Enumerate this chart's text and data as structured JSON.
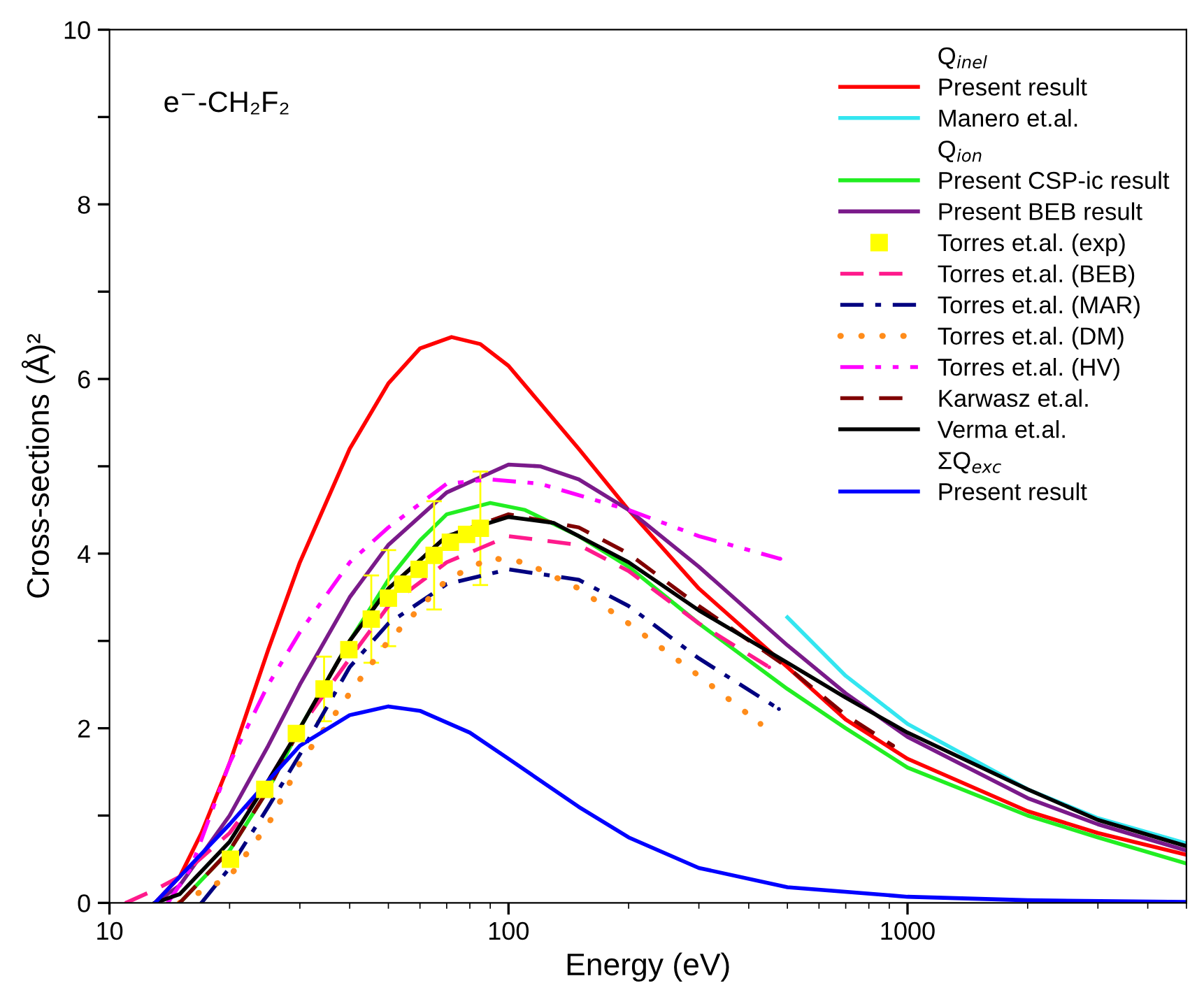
{
  "chart_data": {
    "type": "line",
    "xlabel": "Energy (eV)",
    "ylabel": "Cross-sections (Å)²",
    "annotations": [
      {
        "text": "e$^{−}$-CH₂F₂"
      }
    ],
    "log": "x",
    "xlim": [
      10,
      5000
    ],
    "xticks": [
      10,
      100,
      1000
    ],
    "ylim": [
      0,
      10
    ],
    "yticks": [
      0,
      {
        "value": 1,
        "label": null
      },
      2,
      {
        "value": 3,
        "label": null
      },
      4,
      {
        "value": 5,
        "label": null
      },
      6,
      {
        "value": 7,
        "label": null
      },
      8,
      {
        "value": 9,
        "label": null
      },
      10
    ],
    "grid": false,
    "legend": "top right",
    "series": [
      {
        "type": "other",
        "name": "Q$_{inel}$"
      },
      {
        "name": "Present result",
        "color": "#ff0000",
        "line_style": "solid",
        "x": [
          13,
          15,
          17,
          20,
          25,
          30,
          40,
          50,
          60,
          72,
          85,
          100,
          150,
          200,
          300,
          500,
          700,
          1000,
          2000,
          3000,
          5000
        ],
        "values": [
          0,
          0.3,
          0.8,
          1.6,
          2.9,
          3.9,
          5.2,
          5.95,
          6.35,
          6.48,
          6.4,
          6.15,
          5.2,
          4.5,
          3.6,
          2.7,
          2.1,
          1.65,
          1.05,
          0.8,
          0.55
        ]
      },
      {
        "name": "Manero et.al.",
        "color": "#33e6f0",
        "line_style": "solid",
        "x": [
          500,
          700,
          1000,
          2000,
          3000,
          5000
        ],
        "values": [
          3.27,
          2.6,
          2.05,
          1.3,
          0.97,
          0.68
        ]
      },
      {
        "type": "other",
        "name": "Q$_{ion}$"
      },
      {
        "name": "Present CSP-ic result",
        "color": "#22ee22",
        "line_style": "solid",
        "x": [
          15,
          20,
          25,
          30,
          40,
          50,
          60,
          70,
          90,
          110,
          150,
          200,
          300,
          500,
          700,
          1000,
          2000,
          3000,
          5000
        ],
        "values": [
          0,
          0.6,
          1.3,
          2.0,
          3.0,
          3.7,
          4.15,
          4.45,
          4.58,
          4.5,
          4.2,
          3.85,
          3.2,
          2.45,
          2.0,
          1.55,
          1.0,
          0.75,
          0.45
        ]
      },
      {
        "name": "Present BEB result",
        "color": "#7a1a8a",
        "line_style": "solid",
        "x": [
          13,
          15,
          20,
          25,
          30,
          40,
          50,
          70,
          100,
          120,
          150,
          200,
          300,
          500,
          700,
          1000,
          2000,
          3000,
          5000
        ],
        "values": [
          0,
          0.2,
          1.0,
          1.8,
          2.5,
          3.5,
          4.1,
          4.7,
          5.02,
          5.0,
          4.85,
          4.5,
          3.85,
          2.95,
          2.4,
          1.9,
          1.2,
          0.9,
          0.6
        ]
      },
      {
        "type": "scatter",
        "name": "Torres et.al. (exp)",
        "color": "#ffff00",
        "marker": "square",
        "x": [
          20.1,
          24.5,
          29.4,
          34.5,
          39.8,
          45.3,
          50,
          54.3,
          59.7,
          65.1,
          71.5,
          78.5,
          85
        ],
        "values": [
          0.5,
          1.3,
          1.94,
          2.45,
          2.9,
          3.25,
          3.49,
          3.65,
          3.82,
          3.98,
          4.13,
          4.22,
          4.29
        ],
        "errors": [
          null,
          null,
          null,
          0.37,
          null,
          0.5,
          0.55,
          null,
          null,
          0.62,
          null,
          null,
          0.65
        ]
      },
      {
        "name": "Torres et.al. (BEB)",
        "color": "#ff1a8c",
        "line_style": "dashed",
        "x": [
          11,
          13,
          15,
          20,
          25,
          30,
          40,
          50,
          70,
          100,
          150,
          200,
          300,
          450
        ],
        "values": [
          0,
          0.15,
          0.3,
          0.8,
          1.4,
          2.0,
          2.8,
          3.4,
          3.9,
          4.2,
          4.1,
          3.8,
          3.2,
          2.7
        ]
      },
      {
        "name": "Torres et.al. (MAR)",
        "color": "#000080",
        "line_style": "dashdot",
        "x": [
          17,
          20,
          25,
          30,
          40,
          50,
          70,
          100,
          150,
          200,
          300,
          476
        ],
        "values": [
          0,
          0.4,
          1.1,
          1.7,
          2.7,
          3.2,
          3.65,
          3.82,
          3.7,
          3.4,
          2.8,
          2.22
        ]
      },
      {
        "name": "Torres et.al. (DM)",
        "color": "#ff8c1a",
        "line_style": "dotted",
        "x": [
          15,
          20,
          25,
          30,
          40,
          50,
          70,
          90,
          110,
          150,
          200,
          300,
          428
        ],
        "values": [
          0,
          0.3,
          0.9,
          1.6,
          2.4,
          3.0,
          3.7,
          3.95,
          3.9,
          3.6,
          3.2,
          2.6,
          2.05
        ]
      },
      {
        "name": "Torres et.al. (HV)",
        "color": "#ff00ff",
        "line_style": "dashdotdot",
        "x": [
          14,
          16,
          20,
          25,
          30,
          40,
          50,
          70,
          90,
          120,
          200,
          300,
          480
        ],
        "values": [
          0,
          0.4,
          1.6,
          2.5,
          3.1,
          3.9,
          4.3,
          4.8,
          4.85,
          4.8,
          4.5,
          4.2,
          3.94
        ]
      },
      {
        "name": "Karwasz et.al.",
        "color": "#800000",
        "line_style": "dashed",
        "x": [
          15,
          20,
          25,
          30,
          40,
          50,
          70,
          100,
          150,
          200,
          300,
          500,
          700,
          920
        ],
        "values": [
          0,
          0.6,
          1.3,
          2.0,
          3.0,
          3.6,
          4.2,
          4.45,
          4.3,
          4.0,
          3.4,
          2.7,
          2.15,
          1.8
        ]
      },
      {
        "name": "Verma et.al.",
        "color": "#000000",
        "line_style": "solid",
        "x": [
          13,
          15,
          20,
          25,
          30,
          40,
          50,
          70,
          100,
          130,
          200,
          300,
          500,
          700,
          1000,
          2000,
          3000,
          5000
        ],
        "values": [
          0,
          0.1,
          0.7,
          1.4,
          2.0,
          3.0,
          3.6,
          4.2,
          4.42,
          4.35,
          3.9,
          3.35,
          2.75,
          2.35,
          1.95,
          1.3,
          0.95,
          0.65
        ]
      },
      {
        "type": "other",
        "name": "ΣQ$_{exc}$"
      },
      {
        "name": "Present result",
        "color": "#0000ff",
        "line_style": "solid",
        "x": [
          13,
          15,
          20,
          25,
          30,
          40,
          50,
          60,
          80,
          100,
          150,
          200,
          300,
          500,
          1000,
          2000,
          5000
        ],
        "values": [
          0,
          0.3,
          0.9,
          1.4,
          1.8,
          2.15,
          2.25,
          2.2,
          1.95,
          1.65,
          1.1,
          0.75,
          0.4,
          0.18,
          0.07,
          0.03,
          0.01
        ]
      }
    ]
  }
}
